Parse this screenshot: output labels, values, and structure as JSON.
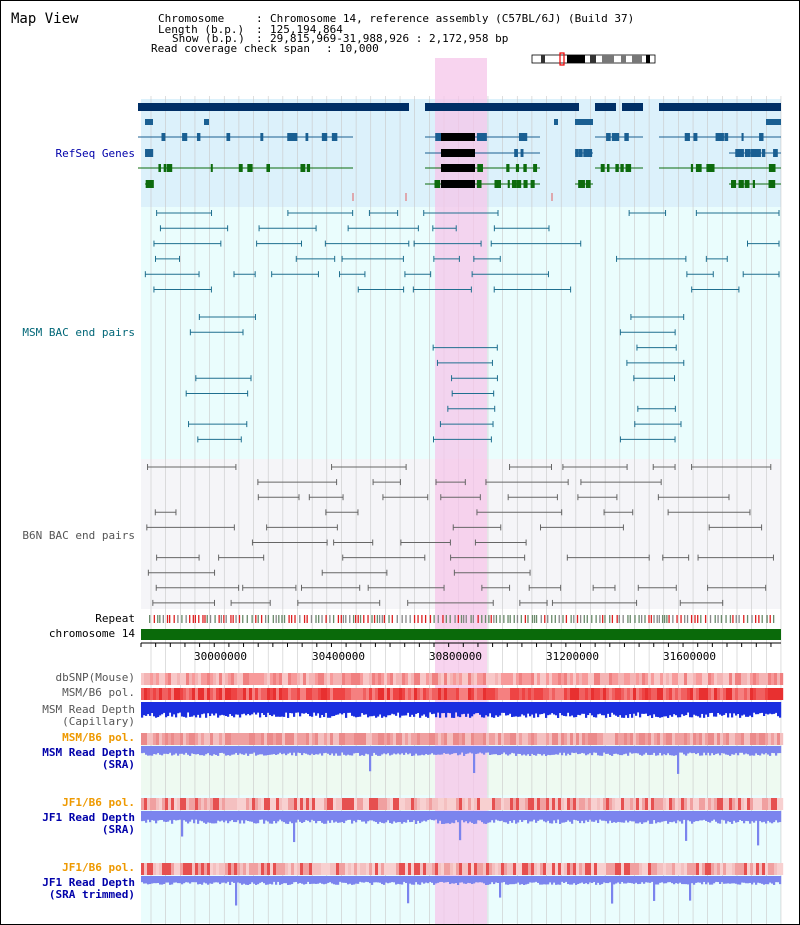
{
  "title": "Map View",
  "info": {
    "chromosome": {
      "label": "Chromosome",
      "value": "Chromosome 14, reference assembly (C57BL/6J) (Build 37)"
    },
    "length": {
      "label": "Length (b.p.)",
      "value": "125,194,864"
    },
    "show": {
      "label": "Show (b.p.)",
      "value": "29,815,969-31,988,926 : 2,172,958 bp"
    },
    "coverage": {
      "label": "Read coverage check span",
      "value": "10,000"
    }
  },
  "tracks": {
    "refseq": {
      "label": "RefSeq Genes",
      "color": "#0000aa"
    },
    "msm_bac": {
      "label": "MSM BAC end pairs",
      "color": "#006677"
    },
    "b6n_bac": {
      "label": "B6N BAC end pairs",
      "color": "#555555"
    },
    "repeat": {
      "label": "Repeat",
      "color": "#000000"
    },
    "chromosome": {
      "label": "chromosome 14",
      "color": "#000000"
    },
    "dbsnp": {
      "label": "dbSNP(Mouse)",
      "color": "#555555"
    },
    "msm_pol": {
      "label": "MSM/B6 pol.",
      "color": "#555555"
    },
    "msm_depth_cap": {
      "label1": "MSM Read Depth",
      "label2": "(Capillary)",
      "color": "#555555"
    },
    "msm_pol2": {
      "label": "MSM/B6 pol.",
      "color": "#ee9900"
    },
    "msm_depth_sra": {
      "label1": "MSM Read Depth",
      "label2": "(SRA)",
      "color": "#0000aa"
    },
    "jf1_pol": {
      "label": "JF1/B6 pol.",
      "color": "#ee9900"
    },
    "jf1_depth_sra": {
      "label1": "JF1 Read Depth",
      "label2": "(SRA)",
      "color": "#0000aa"
    },
    "jf1_pol2": {
      "label": "JF1/B6 pol.",
      "color": "#ee9900"
    },
    "jf1_depth_trim": {
      "label1": "JF1 Read Depth",
      "label2": "(SRA trimmed)",
      "color": "#0000aa"
    }
  },
  "axis": {
    "ticks": [
      "30000000",
      "30400000",
      "30800000",
      "31200000",
      "31600000"
    ]
  }
}
